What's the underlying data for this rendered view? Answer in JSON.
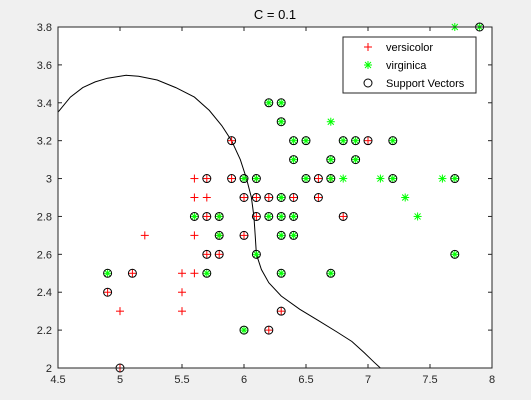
{
  "chart_data": {
    "type": "scatter",
    "title": "C = 0.1",
    "xlim": [
      4.5,
      8.0
    ],
    "ylim": [
      2.0,
      3.8
    ],
    "xticks": [
      4.5,
      5,
      5.5,
      6,
      6.5,
      7,
      7.5,
      8
    ],
    "yticks": [
      2,
      2.2,
      2.4,
      2.6,
      2.8,
      3,
      3.2,
      3.4,
      3.6,
      3.8
    ],
    "xtick_labels": [
      "4.5",
      "5",
      "5.5",
      "6",
      "6.5",
      "7",
      "7.5",
      "8"
    ],
    "ytick_labels": [
      "2",
      "2.2",
      "2.4",
      "2.6",
      "2.8",
      "3",
      "3.2",
      "3.4",
      "3.6",
      "3.8"
    ],
    "grid": false,
    "legend_position": "top-right",
    "legend": [
      "versicolor",
      "virginica",
      "Support Vectors"
    ],
    "colors": {
      "versicolor": "#ff0000",
      "virginica": "#00ff00",
      "support": "#000000",
      "boundary": "#000000"
    },
    "series": [
      {
        "name": "versicolor",
        "marker": "plus",
        "points": [
          [
            4.9,
            2.4
          ],
          [
            5.0,
            2.0
          ],
          [
            5.0,
            2.3
          ],
          [
            5.1,
            2.5
          ],
          [
            5.2,
            2.7
          ],
          [
            5.5,
            2.3
          ],
          [
            5.5,
            2.4
          ],
          [
            5.5,
            2.5
          ],
          [
            5.6,
            2.5
          ],
          [
            5.6,
            2.7
          ],
          [
            5.6,
            2.9
          ],
          [
            5.6,
            3.0
          ],
          [
            5.7,
            2.6
          ],
          [
            5.7,
            2.8
          ],
          [
            5.7,
            2.9
          ],
          [
            5.7,
            3.0
          ],
          [
            5.8,
            2.6
          ],
          [
            5.8,
            2.7
          ],
          [
            5.8,
            2.8
          ],
          [
            5.9,
            3.0
          ],
          [
            5.9,
            3.2
          ],
          [
            6.0,
            2.7
          ],
          [
            6.0,
            2.9
          ],
          [
            6.0,
            3.0
          ],
          [
            6.1,
            2.8
          ],
          [
            6.1,
            2.9
          ],
          [
            6.1,
            3.0
          ],
          [
            6.2,
            2.2
          ],
          [
            6.2,
            2.9
          ],
          [
            6.3,
            2.3
          ],
          [
            6.4,
            2.9
          ],
          [
            6.6,
            2.9
          ],
          [
            6.6,
            3.0
          ],
          [
            6.7,
            3.0
          ],
          [
            6.8,
            2.8
          ],
          [
            7.0,
            3.2
          ]
        ]
      },
      {
        "name": "virginica",
        "marker": "star",
        "points": [
          [
            4.9,
            2.5
          ],
          [
            5.6,
            2.8
          ],
          [
            5.7,
            2.5
          ],
          [
            5.8,
            2.7
          ],
          [
            5.8,
            2.8
          ],
          [
            6.0,
            2.2
          ],
          [
            6.0,
            3.0
          ],
          [
            6.1,
            2.6
          ],
          [
            6.1,
            3.0
          ],
          [
            6.2,
            2.8
          ],
          [
            6.2,
            3.4
          ],
          [
            6.3,
            2.5
          ],
          [
            6.3,
            2.7
          ],
          [
            6.3,
            2.8
          ],
          [
            6.3,
            2.9
          ],
          [
            6.3,
            3.3
          ],
          [
            6.3,
            3.4
          ],
          [
            6.4,
            2.7
          ],
          [
            6.4,
            2.8
          ],
          [
            6.4,
            3.1
          ],
          [
            6.4,
            3.2
          ],
          [
            6.5,
            3.0
          ],
          [
            6.5,
            3.2
          ],
          [
            6.7,
            2.5
          ],
          [
            6.7,
            3.0
          ],
          [
            6.7,
            3.1
          ],
          [
            6.7,
            3.3
          ],
          [
            6.8,
            3.0
          ],
          [
            6.8,
            3.2
          ],
          [
            6.9,
            3.1
          ],
          [
            6.9,
            3.2
          ],
          [
            7.1,
            3.0
          ],
          [
            7.2,
            3.0
          ],
          [
            7.2,
            3.2
          ],
          [
            7.3,
            2.9
          ],
          [
            7.4,
            2.8
          ],
          [
            7.6,
            3.0
          ],
          [
            7.7,
            2.6
          ],
          [
            7.7,
            3.0
          ],
          [
            7.7,
            3.8
          ],
          [
            7.9,
            3.8
          ]
        ]
      },
      {
        "name": "Support Vectors",
        "marker": "circle",
        "points": [
          [
            4.9,
            2.4
          ],
          [
            4.9,
            2.5
          ],
          [
            5.0,
            2.0
          ],
          [
            5.1,
            2.5
          ],
          [
            5.6,
            2.8
          ],
          [
            5.7,
            2.5
          ],
          [
            5.7,
            2.6
          ],
          [
            5.7,
            2.8
          ],
          [
            5.7,
            3.0
          ],
          [
            5.8,
            2.6
          ],
          [
            5.8,
            2.7
          ],
          [
            5.8,
            2.8
          ],
          [
            5.9,
            3.0
          ],
          [
            5.9,
            3.2
          ],
          [
            6.0,
            2.2
          ],
          [
            6.0,
            2.7
          ],
          [
            6.0,
            2.9
          ],
          [
            6.0,
            3.0
          ],
          [
            6.1,
            2.6
          ],
          [
            6.1,
            2.8
          ],
          [
            6.1,
            2.9
          ],
          [
            6.1,
            3.0
          ],
          [
            6.2,
            2.2
          ],
          [
            6.2,
            2.8
          ],
          [
            6.2,
            2.9
          ],
          [
            6.2,
            3.4
          ],
          [
            6.3,
            2.3
          ],
          [
            6.3,
            2.5
          ],
          [
            6.3,
            2.7
          ],
          [
            6.3,
            2.8
          ],
          [
            6.3,
            2.9
          ],
          [
            6.3,
            3.3
          ],
          [
            6.3,
            3.4
          ],
          [
            6.4,
            2.7
          ],
          [
            6.4,
            2.8
          ],
          [
            6.4,
            2.9
          ],
          [
            6.4,
            3.1
          ],
          [
            6.4,
            3.2
          ],
          [
            6.5,
            3.0
          ],
          [
            6.5,
            3.2
          ],
          [
            6.6,
            2.9
          ],
          [
            6.6,
            3.0
          ],
          [
            6.7,
            2.5
          ],
          [
            6.7,
            3.0
          ],
          [
            6.7,
            3.1
          ],
          [
            6.8,
            2.8
          ],
          [
            6.8,
            3.2
          ],
          [
            6.9,
            3.1
          ],
          [
            6.9,
            3.2
          ],
          [
            7.0,
            3.2
          ],
          [
            7.2,
            3.0
          ],
          [
            7.2,
            3.2
          ],
          [
            7.7,
            2.6
          ],
          [
            7.7,
            3.0
          ],
          [
            7.9,
            3.8
          ]
        ]
      }
    ],
    "decision_boundary": [
      [
        4.5,
        3.35
      ],
      [
        4.6,
        3.43
      ],
      [
        4.7,
        3.48
      ],
      [
        4.8,
        3.51
      ],
      [
        4.9,
        3.53
      ],
      [
        5.0,
        3.54
      ],
      [
        5.05,
        3.545
      ],
      [
        5.15,
        3.54
      ],
      [
        5.3,
        3.52
      ],
      [
        5.45,
        3.48
      ],
      [
        5.6,
        3.43
      ],
      [
        5.72,
        3.36
      ],
      [
        5.82,
        3.28
      ],
      [
        5.9,
        3.2
      ],
      [
        5.97,
        3.1
      ],
      [
        6.02,
        3.0
      ],
      [
        6.06,
        2.9
      ],
      [
        6.08,
        2.8
      ],
      [
        6.09,
        2.7
      ],
      [
        6.1,
        2.6
      ],
      [
        6.14,
        2.52
      ],
      [
        6.2,
        2.45
      ],
      [
        6.3,
        2.38
      ],
      [
        6.45,
        2.31
      ],
      [
        6.6,
        2.25
      ],
      [
        6.75,
        2.19
      ],
      [
        6.87,
        2.14
      ],
      [
        6.97,
        2.08
      ],
      [
        7.05,
        2.03
      ],
      [
        7.1,
        2.0
      ]
    ],
    "decision_boundary_tail": [
      [
        7.7,
        3.8
      ],
      [
        7.9,
        3.8
      ],
      [
        8.0,
        3.8
      ]
    ]
  }
}
